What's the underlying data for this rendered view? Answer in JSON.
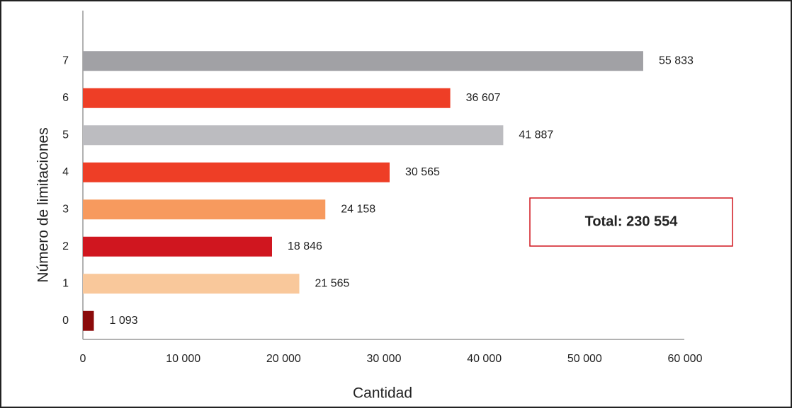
{
  "chart_data": {
    "type": "barh",
    "categories": [
      "0",
      "1",
      "2",
      "3",
      "4",
      "5",
      "6",
      "7"
    ],
    "values": [
      1093,
      21565,
      18846,
      24158,
      30565,
      41887,
      36607,
      55833
    ],
    "value_labels": [
      "1 093",
      "21 565",
      "18 846",
      "24 158",
      "30 565",
      "41 887",
      "36 607",
      "55 833"
    ],
    "colors": [
      "#8b0a0a",
      "#f9c89b",
      "#d0161f",
      "#f79a5e",
      "#ee3e26",
      "#bcbcc0",
      "#ee3e26",
      "#a1a1a5"
    ],
    "xlim": [
      0,
      60000
    ],
    "xticks": [
      0,
      {
        "value": 10000,
        "label": "10 000"
      },
      {
        "value": 20000,
        "label": "20 000"
      },
      {
        "value": 30000,
        "label": "30 000"
      },
      {
        "value": 40000,
        "label": "40 000"
      },
      {
        "value": 50000,
        "label": "50 000"
      },
      {
        "value": 60000,
        "label": "60 000"
      }
    ],
    "xlabel": "Cantidad",
    "ylabel": "Número de limitaciones",
    "annotation": "Total: 230 554"
  }
}
